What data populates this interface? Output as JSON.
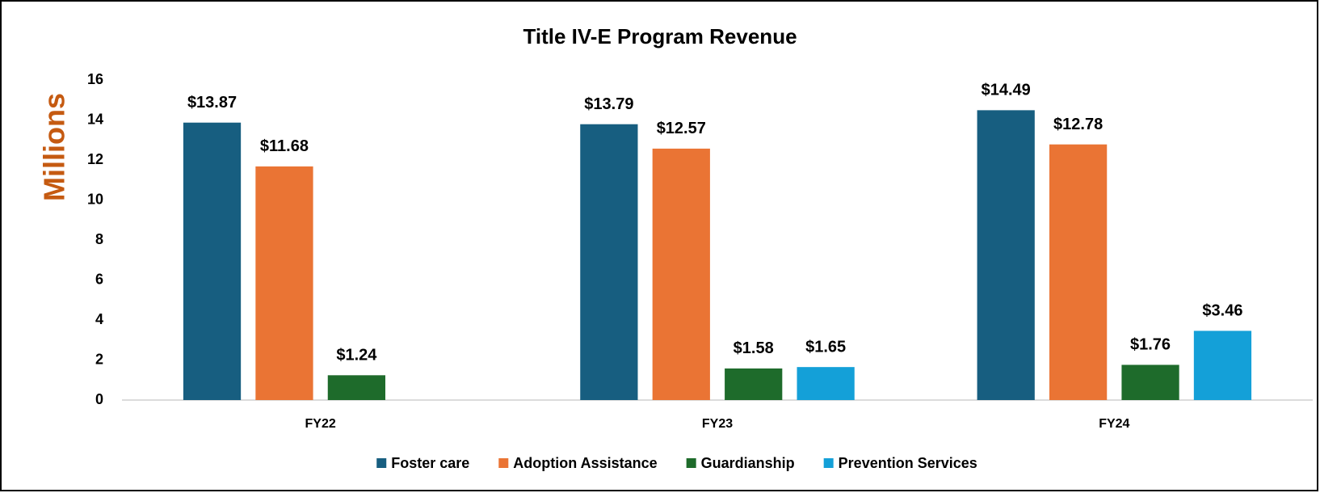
{
  "chart_data": {
    "type": "bar",
    "title": "Title IV-E Program Revenue",
    "ylabel": "Millions",
    "ylabel_color": "#c55a11",
    "categories": [
      "FY22",
      "FY23",
      "FY24"
    ],
    "series": [
      {
        "name": "Foster care",
        "color": "#175e80",
        "values": [
          13.87,
          13.79,
          14.49
        ],
        "value_labels": [
          "$13.87",
          "$13.79",
          "$14.49"
        ]
      },
      {
        "name": "Adoption Assistance",
        "color": "#ea7434",
        "values": [
          11.68,
          12.57,
          12.78
        ],
        "value_labels": [
          "$11.68",
          "$12.57",
          "$12.78"
        ]
      },
      {
        "name": "Guardianship",
        "color": "#1e6b2b",
        "values": [
          1.24,
          1.58,
          1.76
        ],
        "value_labels": [
          "$1.24",
          "$1.58",
          "$1.76"
        ]
      },
      {
        "name": "Prevention Services",
        "color": "#14a0d8",
        "values": [
          null,
          1.65,
          3.46
        ],
        "value_labels": [
          null,
          "$1.65",
          "$3.46"
        ]
      }
    ],
    "ylim": [
      0,
      16
    ],
    "yticks": [
      0,
      2,
      4,
      6,
      8,
      10,
      12,
      14,
      16
    ],
    "grid": false,
    "legend": "bottom"
  }
}
